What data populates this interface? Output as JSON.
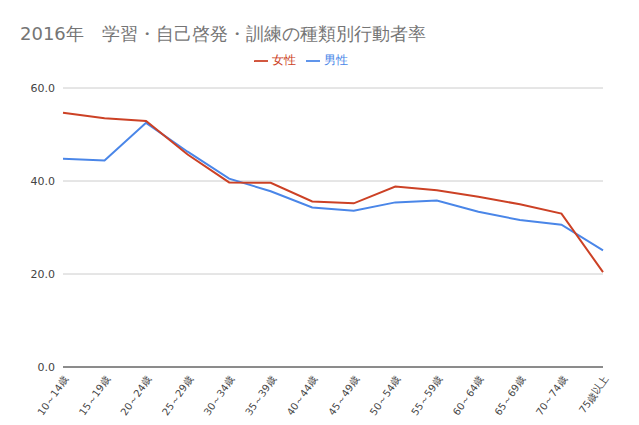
{
  "chart_data": {
    "type": "line",
    "title": "2016年　学習・自己啓発・訓練の種類別行動者率",
    "categories": [
      "10～14歳",
      "15～19歳",
      "20～24歳",
      "25～29歳",
      "30～34歳",
      "35～39歳",
      "40～44歳",
      "45～49歳",
      "50～54歳",
      "55～59歳",
      "60～64歳",
      "65～69歳",
      "70～74歳",
      "75歳以上"
    ],
    "series": [
      {
        "name": "男性",
        "color": "#4a86e8",
        "values": [
          44.8,
          44.4,
          52.5,
          46.3,
          40.5,
          37.8,
          34.3,
          33.6,
          35.4,
          35.8,
          33.4,
          31.6,
          30.6,
          25.1
        ]
      },
      {
        "name": "女性",
        "color": "#cc4125",
        "values": [
          54.7,
          53.5,
          52.9,
          45.7,
          39.7,
          39.6,
          35.6,
          35.2,
          38.8,
          38.0,
          36.6,
          35.0,
          33.0,
          20.4
        ]
      }
    ],
    "ylim": [
      0,
      60
    ],
    "yticks": [
      {
        "value": 0,
        "label": "0.0"
      },
      {
        "value": 20,
        "label": "20.0"
      },
      {
        "value": 40,
        "label": "40.0"
      },
      {
        "value": 60,
        "label": "60.0"
      }
    ],
    "grid": true,
    "legend": "top"
  }
}
